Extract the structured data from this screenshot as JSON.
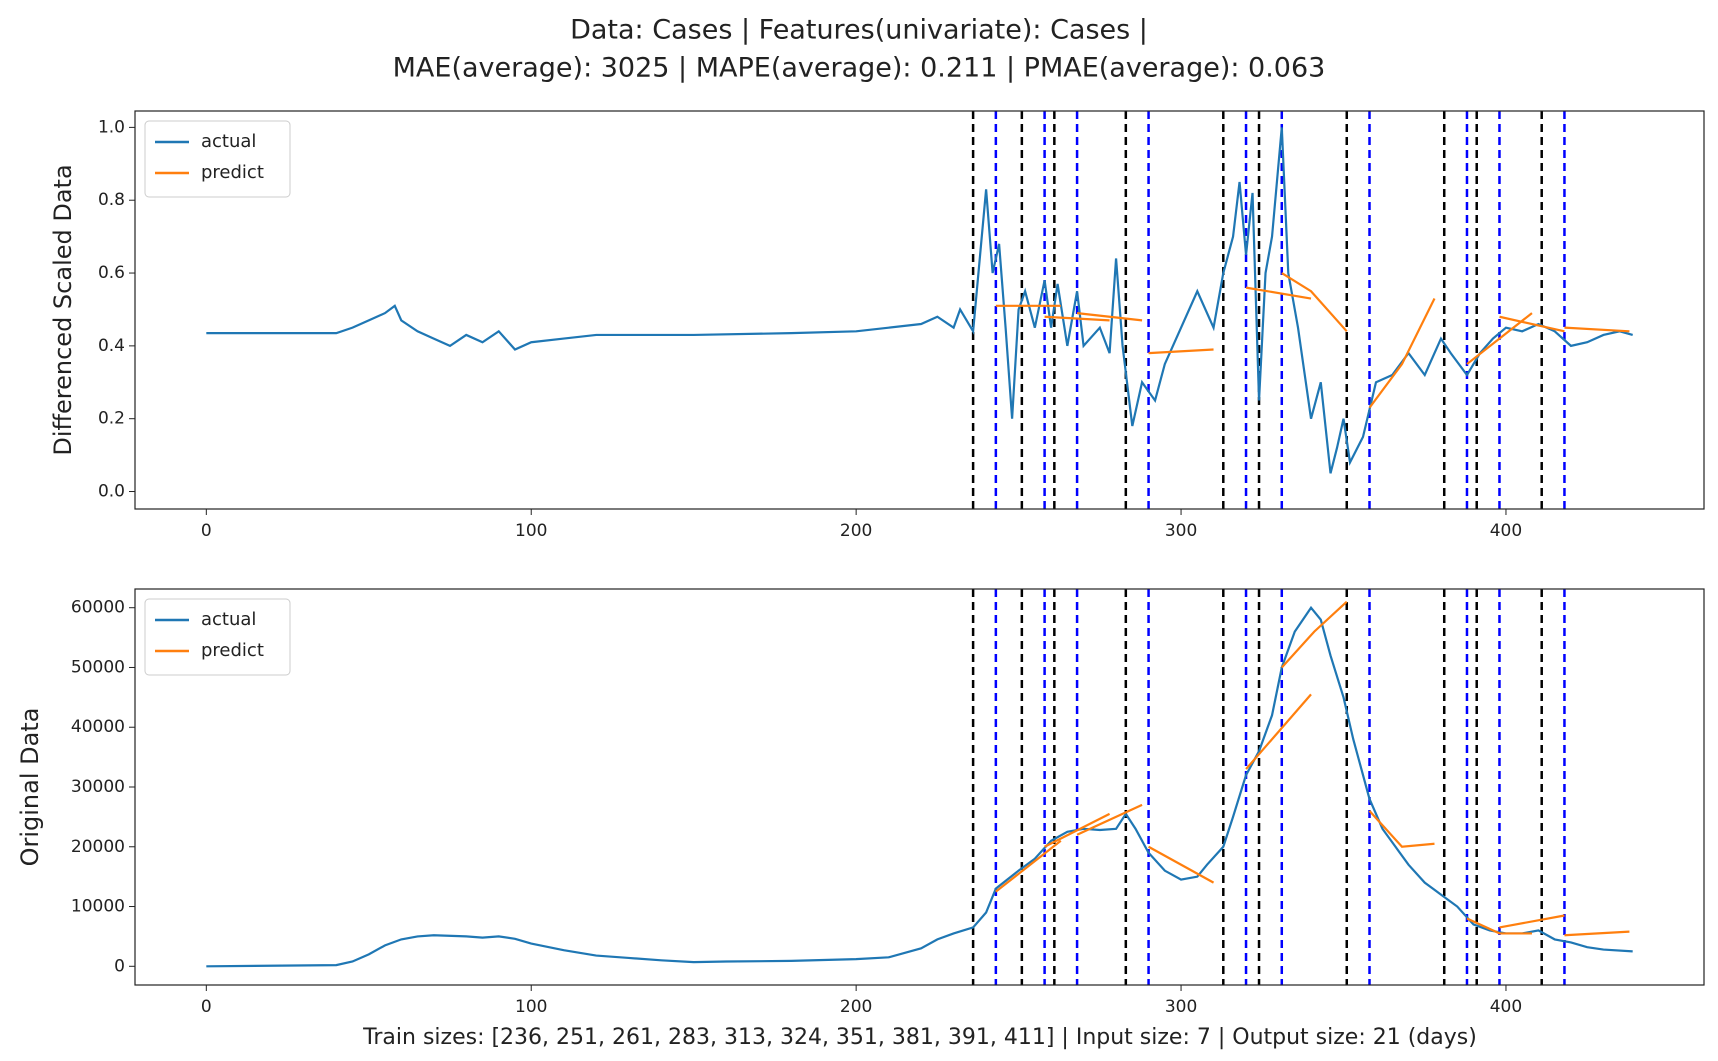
{
  "title": [
    "Data: Cases | Features(univariate): Cases |",
    "MAE(average): 3025 | MAPE(average): 0.211 | PMAE(average): 0.063"
  ],
  "caption": "Train sizes: [236, 251, 261, 283, 313, 324, 351, 381, 391, 411] | Input size: 7 | Output size: 21 (days)",
  "chart_data": [
    {
      "type": "line",
      "ylabel": "Differenced Scaled Data",
      "xlim": [
        -21.95,
        460.95
      ],
      "xticks": [
        0,
        100,
        200,
        300,
        400
      ],
      "ylim": [
        -0.048,
        1.045
      ],
      "yticks": [
        {
          "value": 0,
          "label": "0.0"
        },
        0.2,
        0.4,
        0.6,
        0.8,
        {
          "value": 1,
          "label": "1.0"
        }
      ],
      "legend": "upper left",
      "vlines": [
        {
          "color": "#000000",
          "x": [
            236,
            251,
            261,
            283,
            313,
            324,
            351,
            381,
            391,
            411
          ]
        },
        {
          "color": "#0000ff",
          "x": [
            243,
            258,
            268,
            290,
            320,
            331,
            358,
            388,
            398,
            418
          ]
        }
      ],
      "series": [
        {
          "name": "actual",
          "color": "#1f77b4",
          "x": [
            0,
            40,
            45,
            50,
            55,
            58,
            60,
            65,
            70,
            75,
            80,
            85,
            90,
            95,
            100,
            110,
            120,
            130,
            150,
            180,
            200,
            210,
            220,
            225,
            230,
            232,
            236,
            240,
            242,
            244,
            246,
            248,
            250,
            252,
            255,
            258,
            260,
            262,
            265,
            268,
            270,
            275,
            278,
            280,
            282,
            285,
            288,
            292,
            295,
            300,
            305,
            310,
            313,
            316,
            318,
            320,
            322,
            324,
            326,
            328,
            330,
            331,
            333,
            336,
            340,
            343,
            346,
            348,
            350,
            352,
            356,
            360,
            365,
            370,
            375,
            380,
            383,
            388,
            392,
            396,
            400,
            405,
            410,
            415,
            420,
            425,
            430,
            435,
            439
          ],
          "values": [
            0.435,
            0.435,
            0.45,
            0.47,
            0.49,
            0.51,
            0.47,
            0.44,
            0.42,
            0.4,
            0.43,
            0.41,
            0.44,
            0.39,
            0.41,
            0.42,
            0.43,
            0.43,
            0.43,
            0.435,
            0.44,
            0.45,
            0.46,
            0.48,
            0.45,
            0.5,
            0.44,
            0.83,
            0.6,
            0.68,
            0.45,
            0.2,
            0.5,
            0.55,
            0.45,
            0.58,
            0.45,
            0.57,
            0.4,
            0.55,
            0.4,
            0.45,
            0.38,
            0.64,
            0.4,
            0.18,
            0.3,
            0.25,
            0.35,
            0.45,
            0.55,
            0.45,
            0.6,
            0.7,
            0.85,
            0.65,
            0.82,
            0.25,
            0.6,
            0.7,
            0.9,
            1.0,
            0.6,
            0.45,
            0.2,
            0.3,
            0.05,
            0.12,
            0.2,
            0.08,
            0.15,
            0.3,
            0.32,
            0.38,
            0.32,
            0.42,
            0.38,
            0.32,
            0.38,
            0.42,
            0.45,
            0.44,
            0.46,
            0.44,
            0.4,
            0.41,
            0.43,
            0.44,
            0.43
          ]
        },
        {
          "name": "predict",
          "color": "#ff7f0e",
          "segments": [
            {
              "x": [
                243,
                263
              ],
              "values": [
                0.51,
                0.51
              ]
            },
            {
              "x": [
                258,
                278
              ],
              "values": [
                0.48,
                0.47
              ]
            },
            {
              "x": [
                268,
                288
              ],
              "values": [
                0.49,
                0.47
              ]
            },
            {
              "x": [
                290,
                310
              ],
              "values": [
                0.38,
                0.39
              ]
            },
            {
              "x": [
                320,
                340
              ],
              "values": [
                0.56,
                0.53
              ]
            },
            {
              "x": [
                331,
                340,
                351
              ],
              "values": [
                0.6,
                0.55,
                0.44
              ]
            },
            {
              "x": [
                358,
                368,
                378
              ],
              "values": [
                0.23,
                0.35,
                0.53
              ]
            },
            {
              "x": [
                388,
                408
              ],
              "values": [
                0.35,
                0.49
              ]
            },
            {
              "x": [
                398,
                418
              ],
              "values": [
                0.48,
                0.44
              ]
            },
            {
              "x": [
                418,
                438
              ],
              "values": [
                0.45,
                0.44
              ]
            }
          ]
        }
      ]
    },
    {
      "type": "line",
      "ylabel": "Original Data",
      "xlim": [
        -21.95,
        460.95
      ],
      "xticks": [
        0,
        100,
        200,
        300,
        400
      ],
      "ylim": [
        -3130,
        63130
      ],
      "yticks": [
        0,
        10000,
        20000,
        30000,
        40000,
        50000,
        60000
      ],
      "legend": "upper left",
      "vlines": [
        {
          "color": "#000000",
          "x": [
            236,
            251,
            261,
            283,
            313,
            324,
            351,
            381,
            391,
            411
          ]
        },
        {
          "color": "#0000ff",
          "x": [
            243,
            258,
            268,
            290,
            320,
            331,
            358,
            388,
            398,
            418
          ]
        }
      ],
      "series": [
        {
          "name": "actual",
          "color": "#1f77b4",
          "x": [
            0,
            40,
            45,
            50,
            55,
            60,
            65,
            70,
            80,
            85,
            90,
            95,
            100,
            110,
            120,
            130,
            140,
            150,
            160,
            180,
            200,
            210,
            220,
            225,
            230,
            236,
            240,
            243,
            250,
            255,
            260,
            265,
            270,
            275,
            280,
            283,
            286,
            290,
            295,
            300,
            305,
            308,
            313,
            316,
            320,
            324,
            328,
            331,
            335,
            340,
            343,
            346,
            350,
            353,
            358,
            362,
            366,
            370,
            375,
            380,
            385,
            390,
            395,
            400,
            405,
            410,
            415,
            420,
            425,
            430,
            439
          ],
          "values": [
            0,
            200,
            800,
            2000,
            3500,
            4500,
            5000,
            5200,
            5000,
            4800,
            5000,
            4600,
            3800,
            2700,
            1800,
            1400,
            1000,
            700,
            800,
            900,
            1200,
            1500,
            3000,
            4500,
            5500,
            6500,
            9000,
            13000,
            16000,
            18000,
            21000,
            22500,
            23000,
            22800,
            23000,
            25500,
            23000,
            19000,
            16000,
            14500,
            15000,
            17000,
            20000,
            25000,
            32000,
            36000,
            42000,
            50000,
            56000,
            60000,
            58000,
            52000,
            45000,
            38000,
            28000,
            23000,
            20000,
            17000,
            14000,
            12000,
            10000,
            7000,
            6000,
            5500,
            5500,
            6000,
            4500,
            4000,
            3200,
            2800,
            2500
          ]
        },
        {
          "name": "predict",
          "color": "#ff7f0e",
          "segments": [
            {
              "x": [
                243,
                263
              ],
              "values": [
                12500,
                21000
              ]
            },
            {
              "x": [
                258,
                278
              ],
              "values": [
                20000,
                25500
              ]
            },
            {
              "x": [
                268,
                288
              ],
              "values": [
                22000,
                27000
              ]
            },
            {
              "x": [
                290,
                310
              ],
              "values": [
                20000,
                14000
              ]
            },
            {
              "x": [
                320,
                340
              ],
              "values": [
                33000,
                45500
              ]
            },
            {
              "x": [
                331,
                341,
                351
              ],
              "values": [
                50000,
                56000,
                61000
              ]
            },
            {
              "x": [
                358,
                368,
                378
              ],
              "values": [
                26000,
                20000,
                20500
              ]
            },
            {
              "x": [
                388,
                398,
                408
              ],
              "values": [
                8000,
                5500,
                5500
              ]
            },
            {
              "x": [
                398,
                418
              ],
              "values": [
                6500,
                8500
              ]
            },
            {
              "x": [
                418,
                438
              ],
              "values": [
                5200,
                5800
              ]
            }
          ]
        }
      ]
    }
  ]
}
